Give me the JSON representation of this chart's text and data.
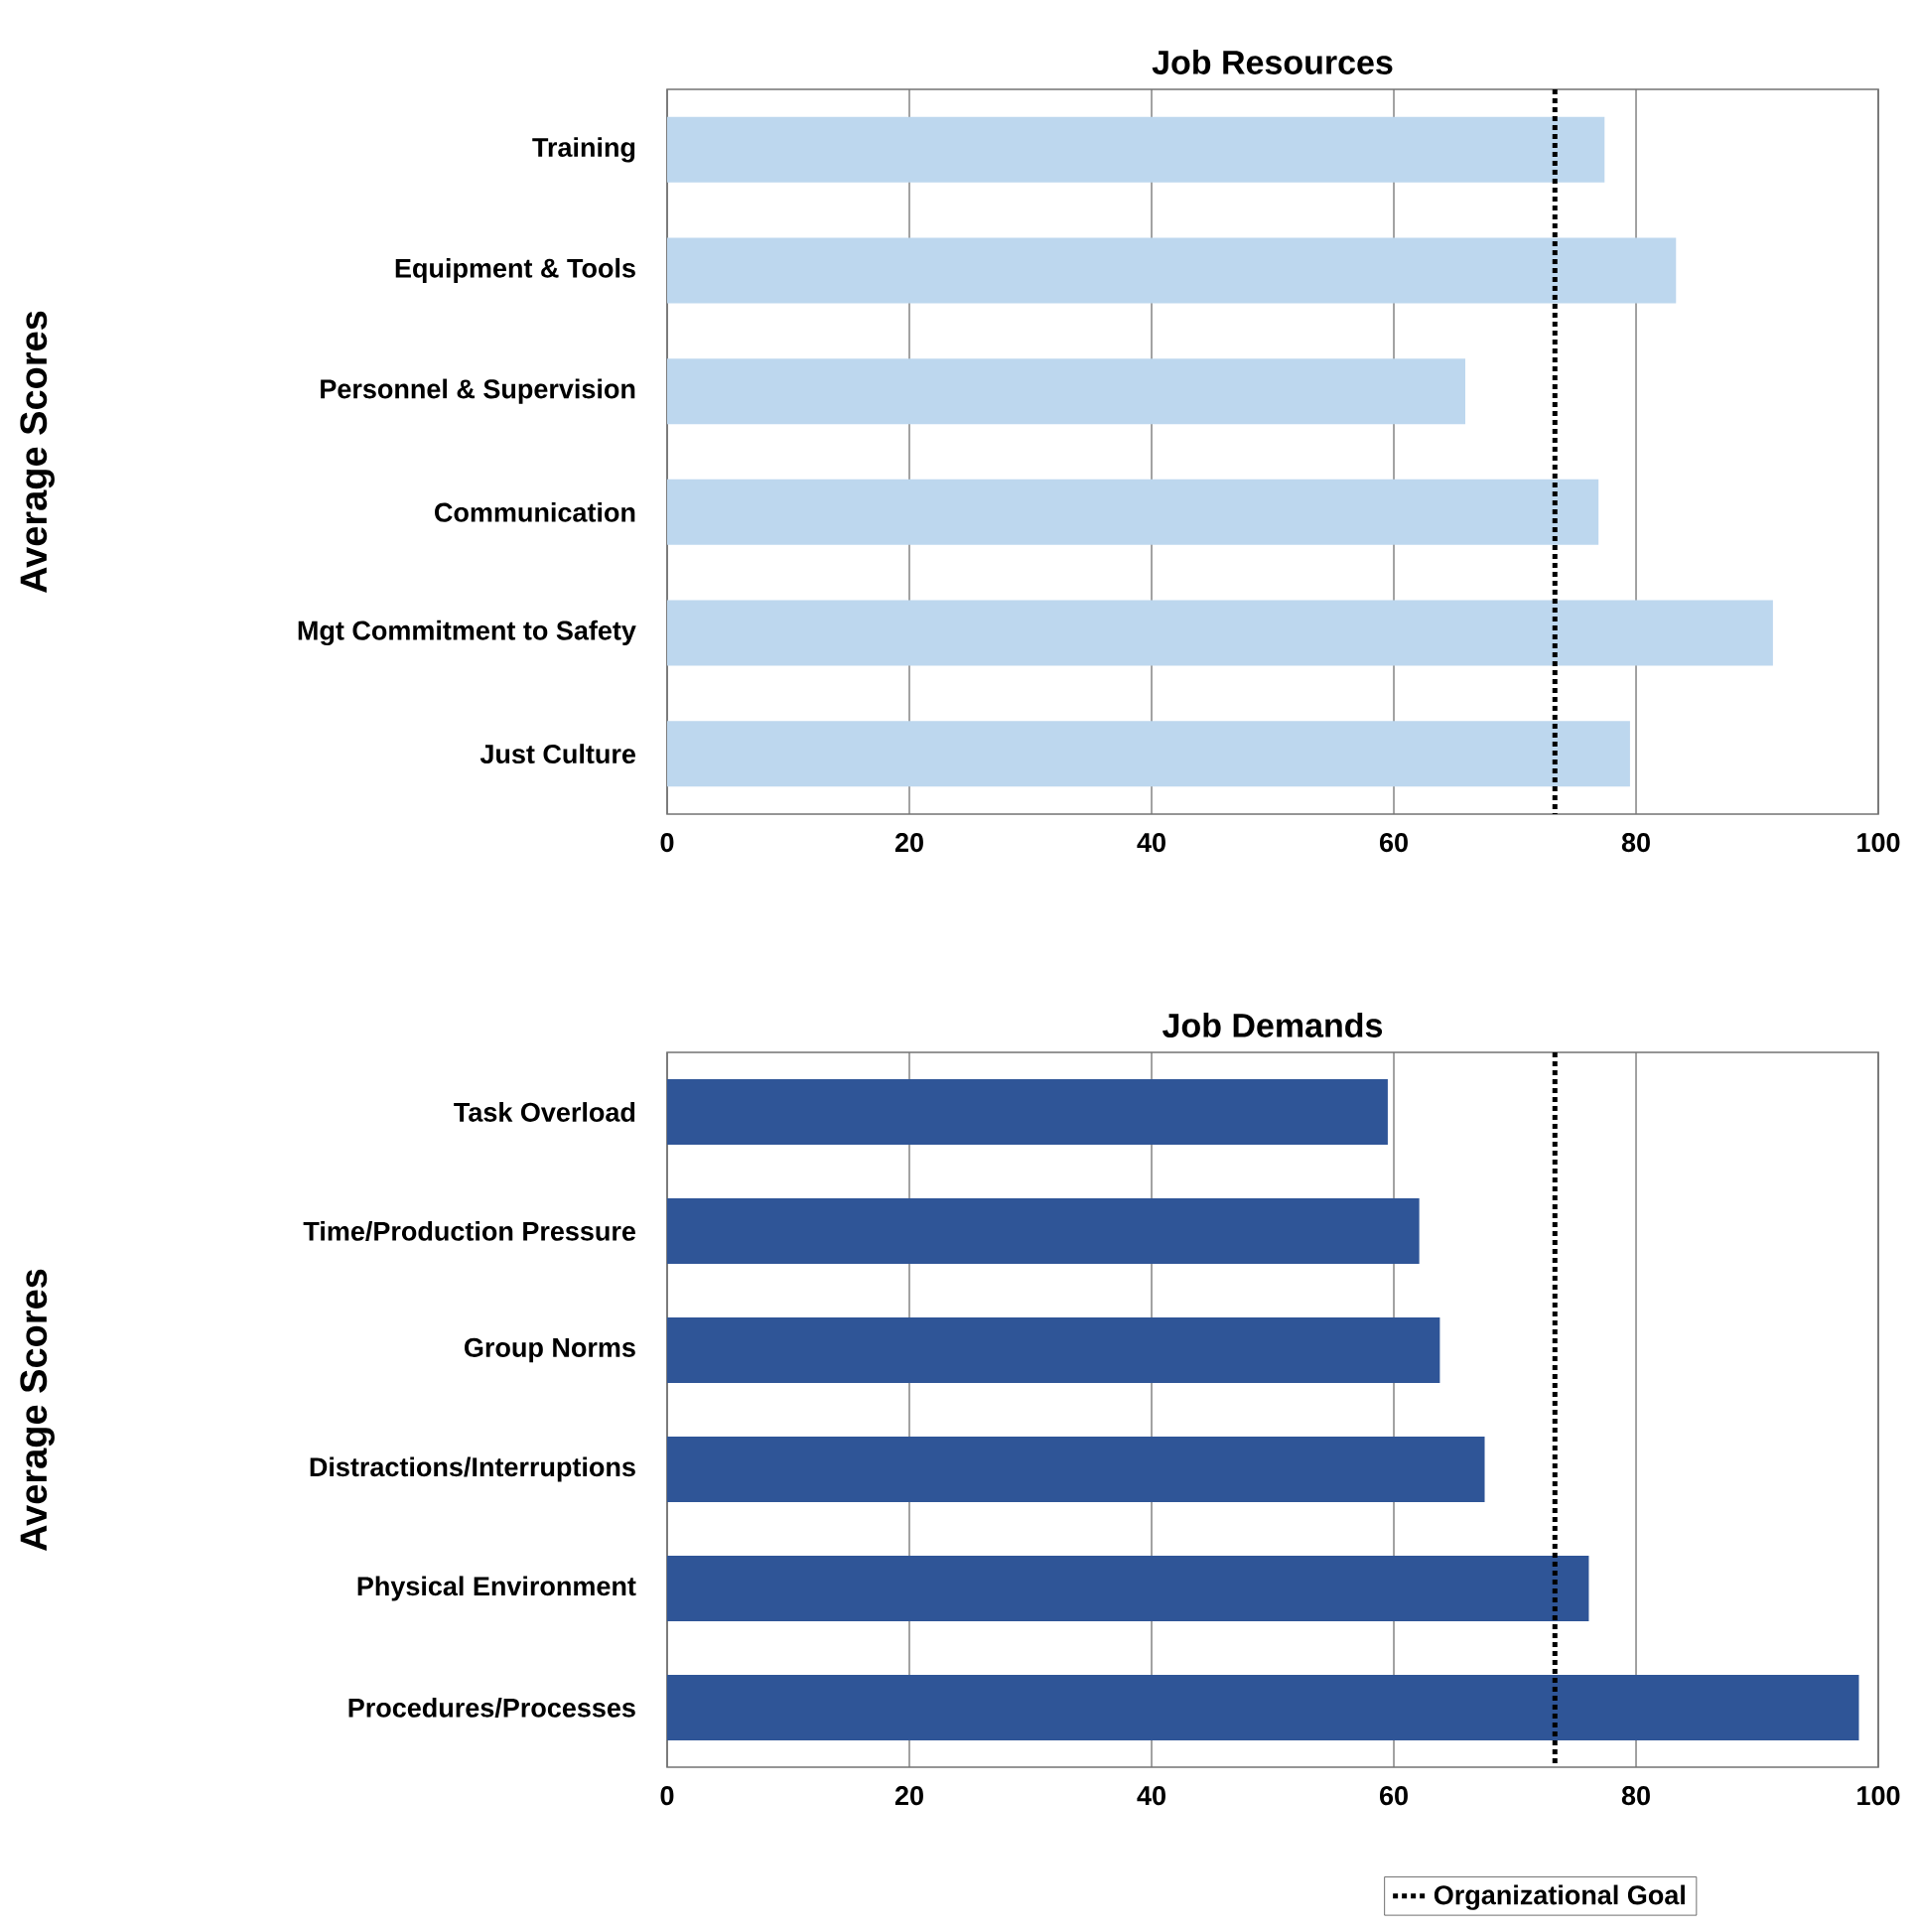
{
  "chart_data": [
    {
      "type": "bar",
      "orientation": "horizontal",
      "title": "Job Resources",
      "ylabel": "Average Scores",
      "categories": [
        "Training",
        "Equipment & Tools",
        "Personnel & Supervision",
        "Communication",
        "Mgt Commitment to Safety",
        "Just Culture"
      ],
      "values": [
        77.4,
        83.3,
        65.9,
        76.9,
        91.3,
        79.5
      ],
      "color": "#bdd7ee",
      "xlim": [
        0,
        100
      ],
      "xticks": [
        0,
        20,
        40,
        60,
        80,
        100
      ],
      "grid": "x",
      "ref_lines": [
        {
          "axis": "x",
          "value": 73.3,
          "color": "#000000",
          "line_style": "dotted"
        }
      ]
    },
    {
      "type": "bar",
      "orientation": "horizontal",
      "title": "Job Demands",
      "ylabel": "Average Scores",
      "categories": [
        "Task Overload",
        "Time/Production Pressure",
        "Group Norms",
        "Distractions/Interruptions",
        "Physical Environment",
        "Procedures/Processes"
      ],
      "values": [
        59.5,
        62.1,
        63.8,
        67.5,
        76.1,
        98.4
      ],
      "color": "#2f5597",
      "xlim": [
        0,
        100
      ],
      "xticks": [
        0,
        20,
        40,
        60,
        80,
        100
      ],
      "grid": "x",
      "legend": "bottom right",
      "ref_lines": [
        {
          "axis": "x",
          "value": 73.3,
          "label": "Organizational Goal",
          "color": "#000000",
          "line_style": "dotted"
        }
      ]
    }
  ]
}
